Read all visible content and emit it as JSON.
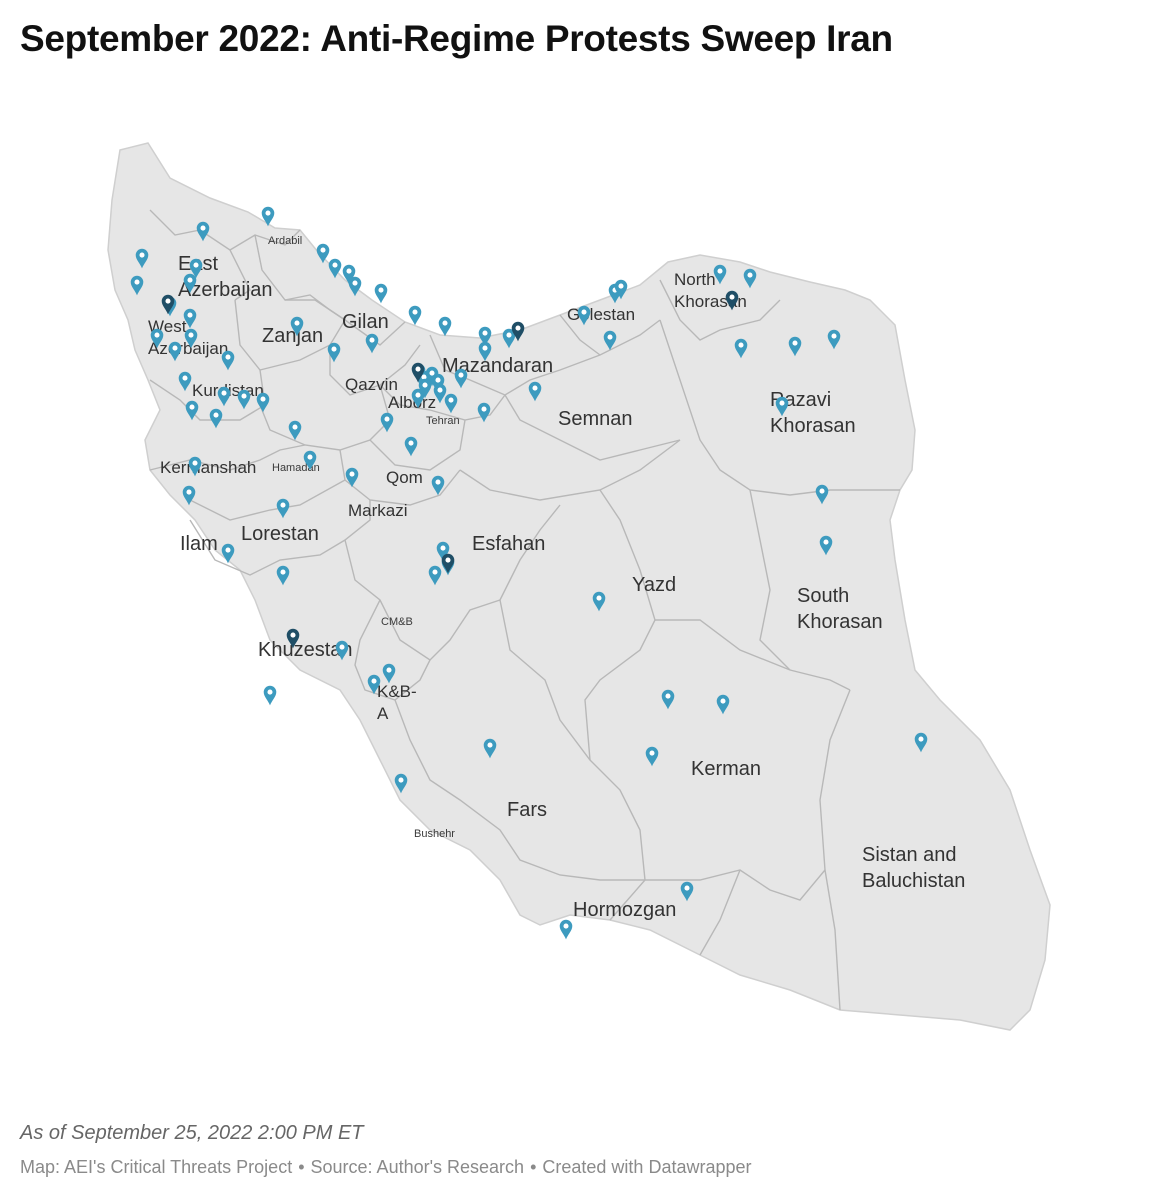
{
  "title": "September 2022: Anti-Regime Protests Sweep Iran",
  "note": "As of September 25, 2022 2:00 PM ET",
  "credits": {
    "map": "Map: AEI's Critical Threats Project",
    "source": "Source: Author's Research",
    "created": "Created with Datawrapper",
    "separator": "•"
  },
  "colors": {
    "land": "#e6e6e6",
    "border": "#b8b8b8",
    "marker": "#3d9bbf",
    "marker_dark": "#1f4e66"
  },
  "marker_icon": "map-pin-icon",
  "provinces": [
    {
      "name": "East Azerbaijan",
      "lines": [
        "East",
        "Azerbaijan"
      ],
      "size": "large"
    },
    {
      "name": "Ardabil",
      "lines": [
        "Ardabil"
      ],
      "size": "small"
    },
    {
      "name": "West Azerbaijan",
      "lines": [
        "West",
        "Azerbaijan"
      ],
      "size": "medium"
    },
    {
      "name": "Zanjan",
      "lines": [
        "Zanjan"
      ],
      "size": "large"
    },
    {
      "name": "Gilan",
      "lines": [
        "Gilan"
      ],
      "size": "large"
    },
    {
      "name": "Kurdistan",
      "lines": [
        "Kurdistan"
      ],
      "size": "medium"
    },
    {
      "name": "Qazvin",
      "lines": [
        "Qazvin"
      ],
      "size": "medium"
    },
    {
      "name": "Alborz",
      "lines": [
        "Alborz"
      ],
      "size": "medium"
    },
    {
      "name": "Tehran",
      "lines": [
        "Tehran"
      ],
      "size": "small"
    },
    {
      "name": "Mazandaran",
      "lines": [
        "Mazandaran"
      ],
      "size": "large"
    },
    {
      "name": "Golestan",
      "lines": [
        "Golestan"
      ],
      "size": "medium"
    },
    {
      "name": "North Khorasan",
      "lines": [
        "North",
        "Khorasan"
      ],
      "size": "medium"
    },
    {
      "name": "Semnan",
      "lines": [
        "Semnan"
      ],
      "size": "large"
    },
    {
      "name": "Razavi Khorasan",
      "lines": [
        "Razavi",
        "Khorasan"
      ],
      "size": "large"
    },
    {
      "name": "Kermanshah",
      "lines": [
        "Kermanshah"
      ],
      "size": "medium"
    },
    {
      "name": "Hamadan",
      "lines": [
        "Hamadan"
      ],
      "size": "small"
    },
    {
      "name": "Qom",
      "lines": [
        "Qom"
      ],
      "size": "medium"
    },
    {
      "name": "Markazi",
      "lines": [
        "Markazi"
      ],
      "size": "medium"
    },
    {
      "name": "Lorestan",
      "lines": [
        "Lorestan"
      ],
      "size": "large"
    },
    {
      "name": "Ilam",
      "lines": [
        "Ilam"
      ],
      "size": "large"
    },
    {
      "name": "Esfahan",
      "lines": [
        "Esfahan"
      ],
      "size": "large"
    },
    {
      "name": "Yazd",
      "lines": [
        "Yazd"
      ],
      "size": "large"
    },
    {
      "name": "South Khorasan",
      "lines": [
        "South",
        "Khorasan"
      ],
      "size": "large"
    },
    {
      "name": "CM&B",
      "lines": [
        "CM&B"
      ],
      "size": "small"
    },
    {
      "name": "Khuzestan",
      "lines": [
        "Khuzestan"
      ],
      "size": "large"
    },
    {
      "name": "K&B-A",
      "lines": [
        "K&B-",
        "A"
      ],
      "size": "medium"
    },
    {
      "name": "Kerman",
      "lines": [
        "Kerman"
      ],
      "size": "large"
    },
    {
      "name": "Fars",
      "lines": [
        "Fars"
      ],
      "size": "large"
    },
    {
      "name": "Bushehr",
      "lines": [
        "Bushehr"
      ],
      "size": "small"
    },
    {
      "name": "Sistan and Baluchistan",
      "lines": [
        "Sistan and",
        "Baluchistan"
      ],
      "size": "large"
    },
    {
      "name": "Hormozgan",
      "lines": [
        "Hormozgan"
      ],
      "size": "large"
    }
  ]
}
